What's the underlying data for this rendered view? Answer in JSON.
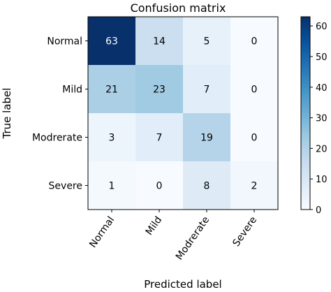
{
  "chart_data": {
    "type": "heatmap",
    "title": "Confusion matrix",
    "xlabel": "Predicted label",
    "ylabel": "True label",
    "x_categories": [
      "Normal",
      "Mild",
      "Modrerate",
      "Severe"
    ],
    "y_categories": [
      "Normal",
      "Mild",
      "Modrerate",
      "Severe"
    ],
    "values": [
      [
        63,
        14,
        5,
        0
      ],
      [
        21,
        23,
        7,
        0
      ],
      [
        3,
        7,
        19,
        0
      ],
      [
        1,
        0,
        8,
        2
      ]
    ],
    "colormap": "Blues",
    "vmin": 0,
    "vmax": 63,
    "colorbar_ticks": [
      "0",
      "10",
      "20",
      "30",
      "40",
      "50",
      "60"
    ],
    "colorbar_tick_values": [
      0,
      10,
      20,
      30,
      40,
      50,
      60
    ],
    "colors": {
      "low": "#f7fbff",
      "high": "#08306b",
      "text_dark": "#000000",
      "text_light": "#ffffff"
    }
  }
}
